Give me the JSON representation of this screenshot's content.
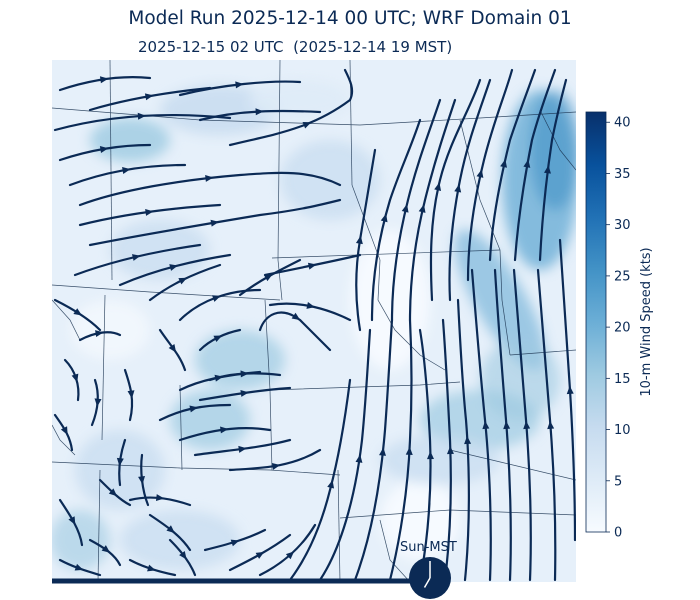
{
  "header": {
    "title": "Model Run 2025-12-14 00 UTC; WRF Domain 01",
    "subtitle": "2025-12-15 02 UTC  (2025-12-14 19 MST)"
  },
  "colorbar": {
    "label": "10-m Wind Speed (kts)",
    "ticks": [
      "0",
      "5",
      "10",
      "15",
      "20",
      "25",
      "30",
      "35",
      "40"
    ],
    "range": [
      0,
      41
    ],
    "colormap": [
      "#f7fbff",
      "#deebf7",
      "#c6dbef",
      "#9ecae1",
      "#6baed6",
      "#4292c6",
      "#2171b5",
      "#08519c",
      "#08306b"
    ]
  },
  "clock": {
    "label": "Sun-MST",
    "hour": 7,
    "minute": 0
  },
  "colors": {
    "streamline": "#0b2a55",
    "text": "#0b2a55",
    "boundary": "#1a3350"
  }
}
